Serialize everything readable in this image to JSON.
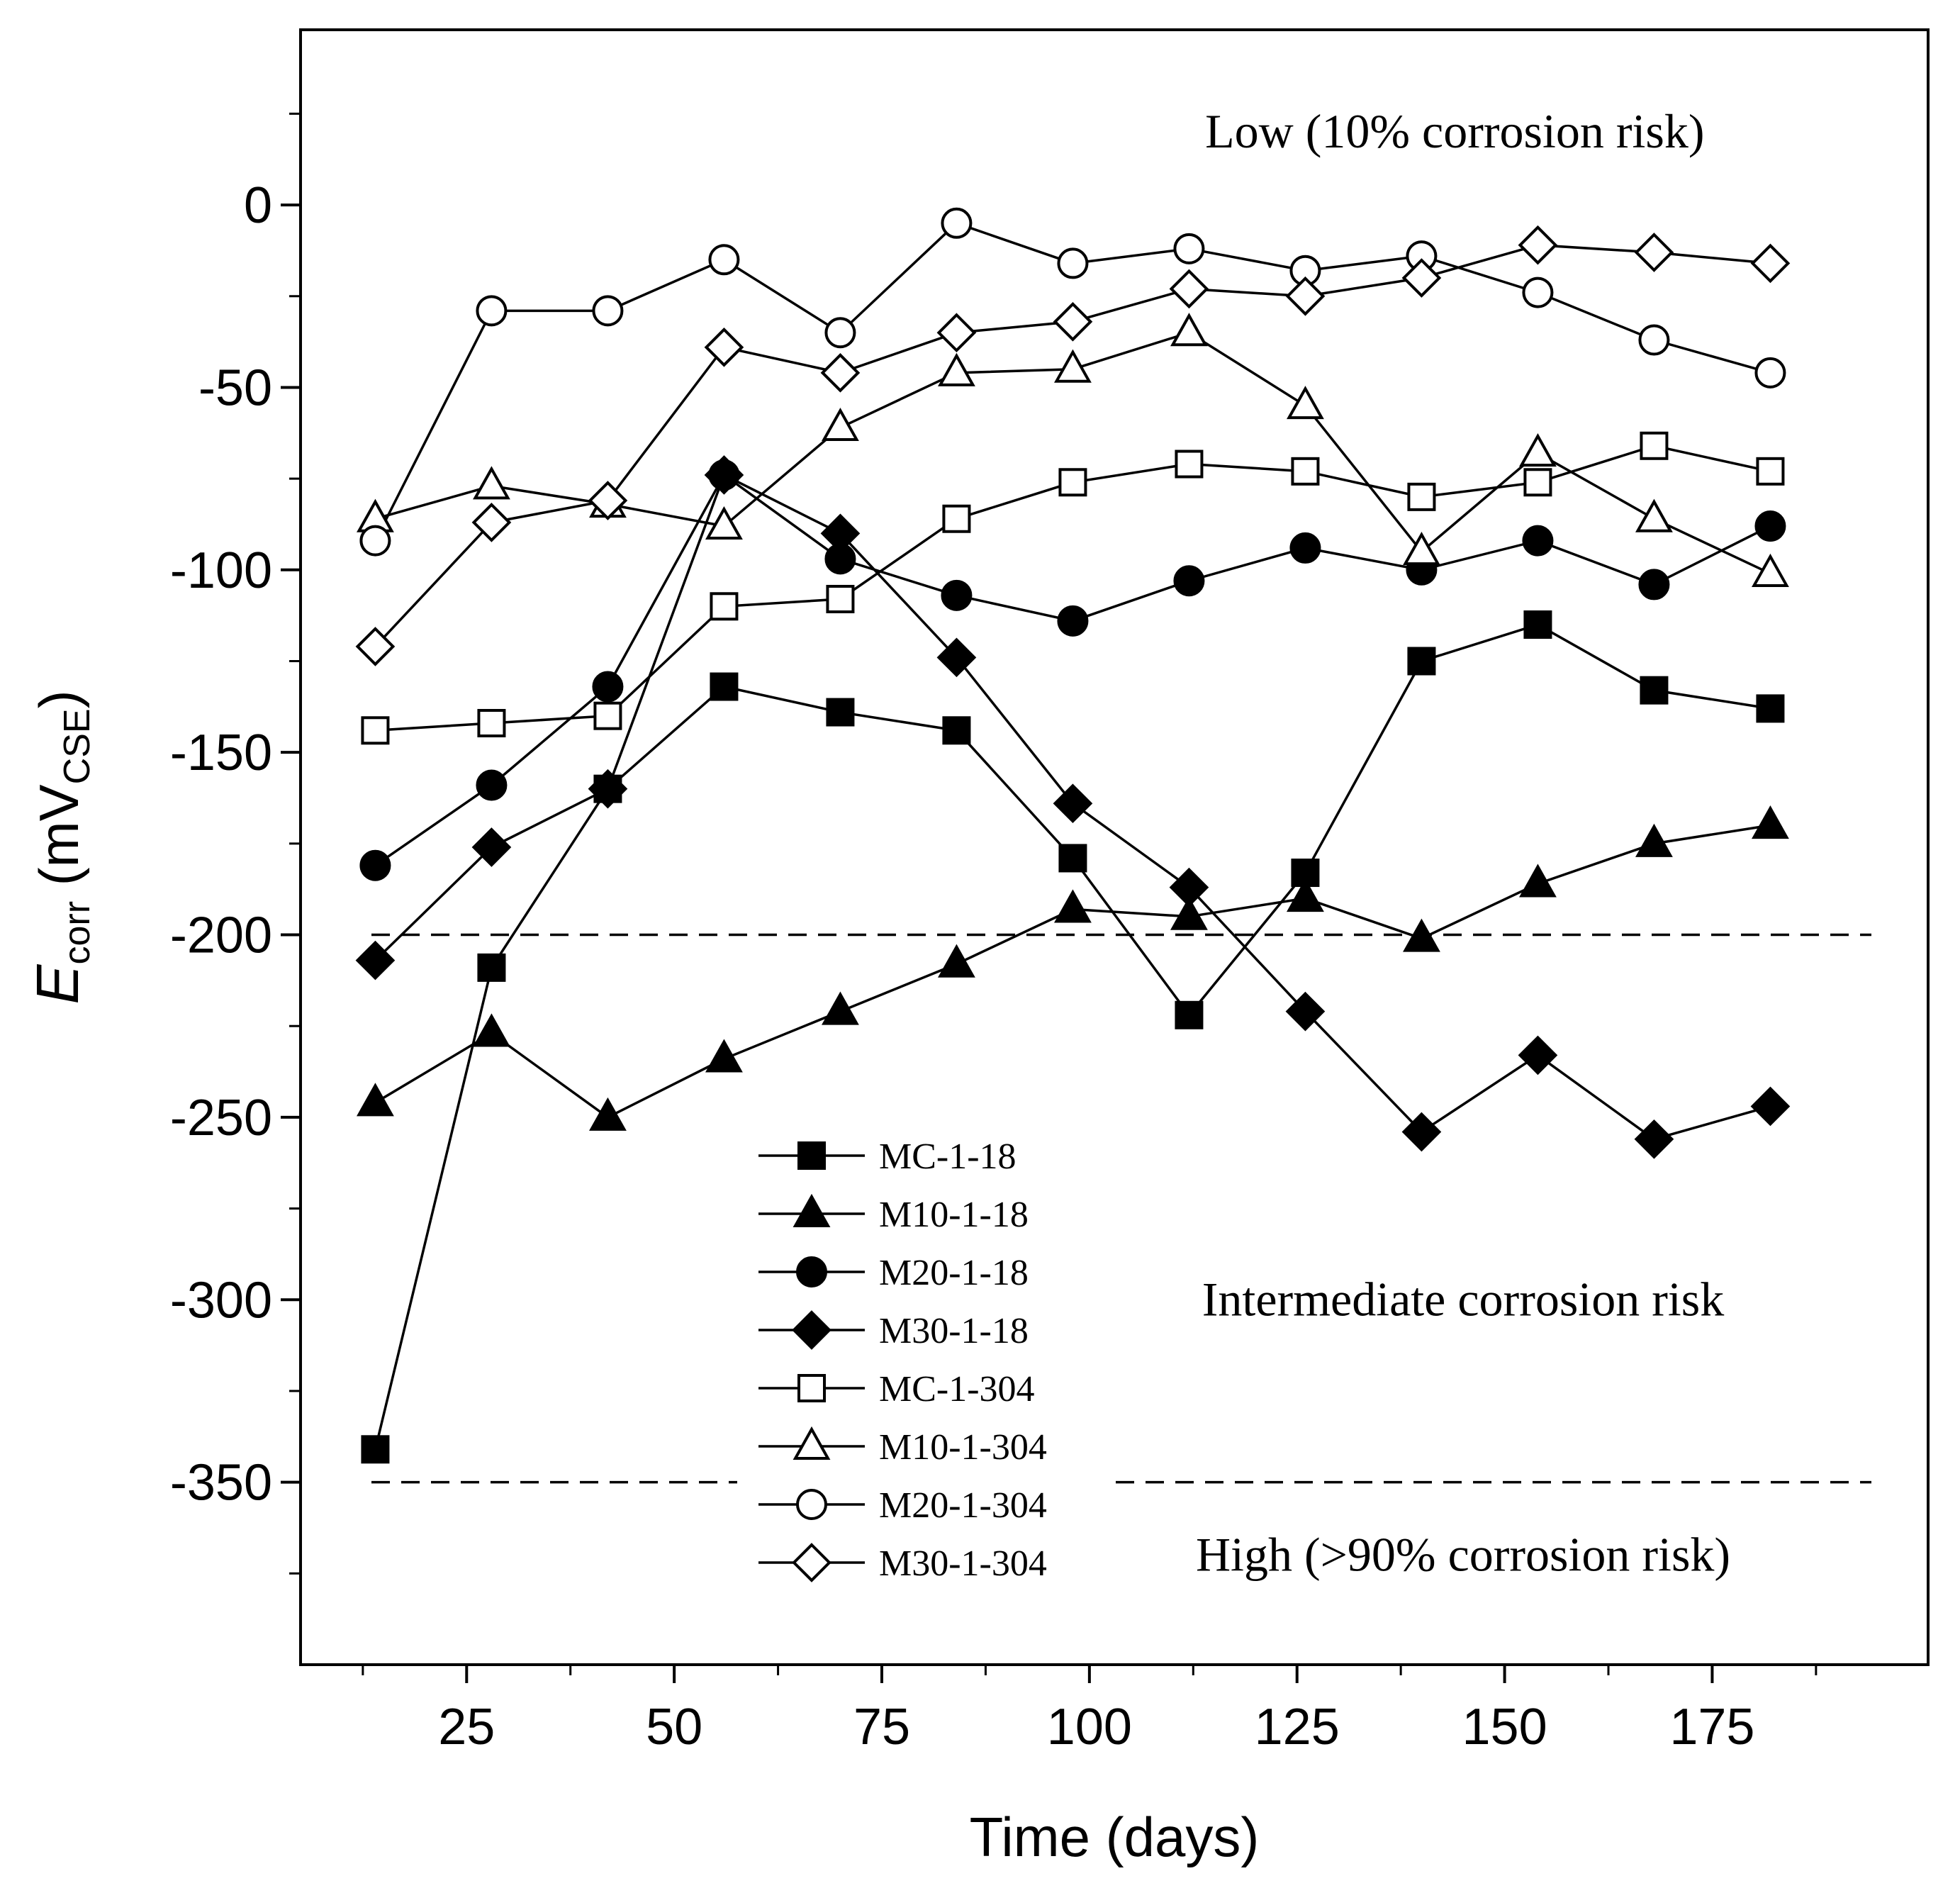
{
  "chart_data": {
    "type": "line",
    "title": "",
    "xlabel": "Time (days)",
    "ylabel": {
      "symbol": "E",
      "symbol_sub": "corr",
      "unit_prefix": " (mV",
      "unit_sub": "CSE",
      "unit_suffix": ")"
    },
    "xlim": [
      5,
      201
    ],
    "ylim": [
      -400,
      48
    ],
    "xticks_major": [
      25,
      50,
      75,
      100,
      125,
      150,
      175
    ],
    "xticks_major_labels": [
      "25",
      "50",
      "75",
      "100",
      "125",
      "150",
      "175"
    ],
    "xticks_minor": [
      12.5,
      37.5,
      62.5,
      87.5,
      112.5,
      137.5,
      162.5,
      187.5
    ],
    "yticks_major": [
      0,
      -50,
      -100,
      -150,
      -200,
      -250,
      -300,
      -350
    ],
    "yticks_major_labels": [
      "0",
      "-50",
      "-100",
      "-150",
      "-200",
      "-250",
      "-300",
      "-350"
    ],
    "yticks_minor": [
      25,
      -25,
      -75,
      -125,
      -175,
      -225,
      -275,
      -325,
      -375
    ],
    "x": [
      14,
      28,
      42,
      56,
      70,
      84,
      98,
      112,
      126,
      140,
      154,
      168,
      182
    ],
    "series": [
      {
        "name": "MC-1-18",
        "marker": "square",
        "filled": true,
        "values": [
          -341,
          -209,
          -160,
          -132,
          -139,
          -144,
          -179,
          -222,
          -183,
          -125,
          -115,
          -133,
          -138
        ]
      },
      {
        "name": "M10-1-18",
        "marker": "triangle",
        "filled": true,
        "values": [
          -246,
          -227,
          -250,
          -234,
          -221,
          -208,
          -193,
          -195,
          -190,
          -201,
          -186,
          -175,
          -170
        ]
      },
      {
        "name": "M20-1-18",
        "marker": "circle",
        "filled": true,
        "values": [
          -181,
          -159,
          -132,
          -74,
          -97,
          -107,
          -114,
          -103,
          -94,
          -100,
          -92,
          -104,
          -88
        ]
      },
      {
        "name": "M30-1-18",
        "marker": "diamond",
        "filled": true,
        "values": [
          -207,
          -176,
          -160,
          -74,
          -90,
          -124,
          -164,
          -187,
          -221,
          -254,
          -233,
          -256,
          -247
        ]
      },
      {
        "name": "MC-1-304",
        "marker": "square",
        "filled": false,
        "values": [
          -144,
          -142,
          -140,
          -110,
          -108,
          -86,
          -76,
          -71,
          -73,
          -80,
          -76,
          -66,
          -73
        ]
      },
      {
        "name": "M10-1-304",
        "marker": "triangle",
        "filled": false,
        "values": [
          -86,
          -77,
          -82,
          -88,
          -61,
          -46,
          -45,
          -35,
          -55,
          -95,
          -68,
          -86,
          -101
        ]
      },
      {
        "name": "M20-1-304",
        "marker": "circle",
        "filled": false,
        "values": [
          -92,
          -29,
          -29,
          -15,
          -35,
          -5,
          -16,
          -12,
          -18,
          -14,
          -24,
          -37,
          -46
        ]
      },
      {
        "name": "M30-1-304",
        "marker": "diamond",
        "filled": false,
        "values": [
          -121,
          -87,
          -81,
          -39,
          -46,
          -35,
          -32,
          -23,
          -25,
          -20,
          -11,
          -13,
          -16
        ]
      }
    ],
    "threshold_lines": [
      {
        "y": -200,
        "style": "dashed"
      },
      {
        "y": -350,
        "style": "dashed"
      }
    ],
    "annotations": [
      {
        "text": "Low (10% corrosion risk)",
        "x": 144,
        "y": 20
      },
      {
        "text": "Intermediate corrosion risk",
        "x": 145,
        "y": -300
      },
      {
        "text": "High (>90% corrosion risk)",
        "x": 145,
        "y": -370
      }
    ],
    "legend_location": "lower-center",
    "grid": false
  }
}
